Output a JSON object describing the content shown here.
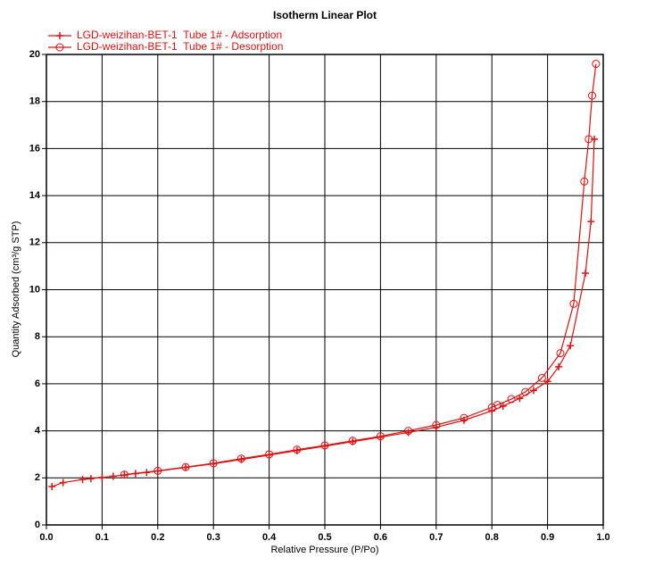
{
  "chart_data": {
    "type": "line",
    "title": "Isotherm Linear Plot",
    "x_label": "Relative Pressure (P/Po)",
    "y_label": "Quantity Adsorbed (cm³/g STP)",
    "xlim": [
      0,
      1
    ],
    "ylim": [
      0,
      20
    ],
    "xticks": [
      {
        "value": 0,
        "label": "0.0"
      },
      0.1,
      0.2,
      0.3,
      0.4,
      0.5,
      0.6,
      0.7,
      0.8,
      0.9,
      {
        "value": 1,
        "label": "1.0"
      }
    ],
    "yticks": [
      0,
      2,
      4,
      6,
      8,
      10,
      12,
      14,
      16,
      18,
      20
    ],
    "grid": true,
    "legend": "top-left",
    "series": [
      {
        "name": "LGD-weizihan-BET-1  Tube 1# - Adsorption",
        "color": "#e01010",
        "marker": "plus",
        "x": [
          0.01,
          0.03,
          0.065,
          0.08,
          0.1,
          0.12,
          0.14,
          0.16,
          0.18,
          0.2,
          0.25,
          0.3,
          0.35,
          0.4,
          0.45,
          0.5,
          0.55,
          0.6,
          0.65,
          0.7,
          0.75,
          0.8,
          0.82,
          0.85,
          0.875,
          0.9,
          0.92,
          0.941,
          0.968,
          0.978,
          0.984
        ],
        "values": [
          1.63,
          1.8,
          1.93,
          1.97,
          2.02,
          2.07,
          2.12,
          2.18,
          2.23,
          2.29,
          2.44,
          2.6,
          2.78,
          2.97,
          3.16,
          3.35,
          3.54,
          3.73,
          3.93,
          4.15,
          4.45,
          4.85,
          5.05,
          5.38,
          5.72,
          6.1,
          6.72,
          7.62,
          10.7,
          12.9,
          16.4
        ]
      },
      {
        "name": "LGD-weizihan-BET-1  Tube 1# - Desorption",
        "color": "#e01010",
        "marker": "circle",
        "x": [
          0.987,
          0.98,
          0.974,
          0.966,
          0.947,
          0.923,
          0.89,
          0.86,
          0.835,
          0.81,
          0.8,
          0.75,
          0.7,
          0.65,
          0.6,
          0.55,
          0.5,
          0.45,
          0.4,
          0.35,
          0.3,
          0.25,
          0.2,
          0.14
        ],
        "values": [
          19.6,
          18.25,
          16.4,
          14.6,
          9.4,
          7.3,
          6.25,
          5.65,
          5.35,
          5.1,
          5.0,
          4.55,
          4.25,
          4.0,
          3.77,
          3.58,
          3.38,
          3.2,
          3.0,
          2.82,
          2.62,
          2.46,
          2.3,
          2.14
        ]
      }
    ]
  }
}
